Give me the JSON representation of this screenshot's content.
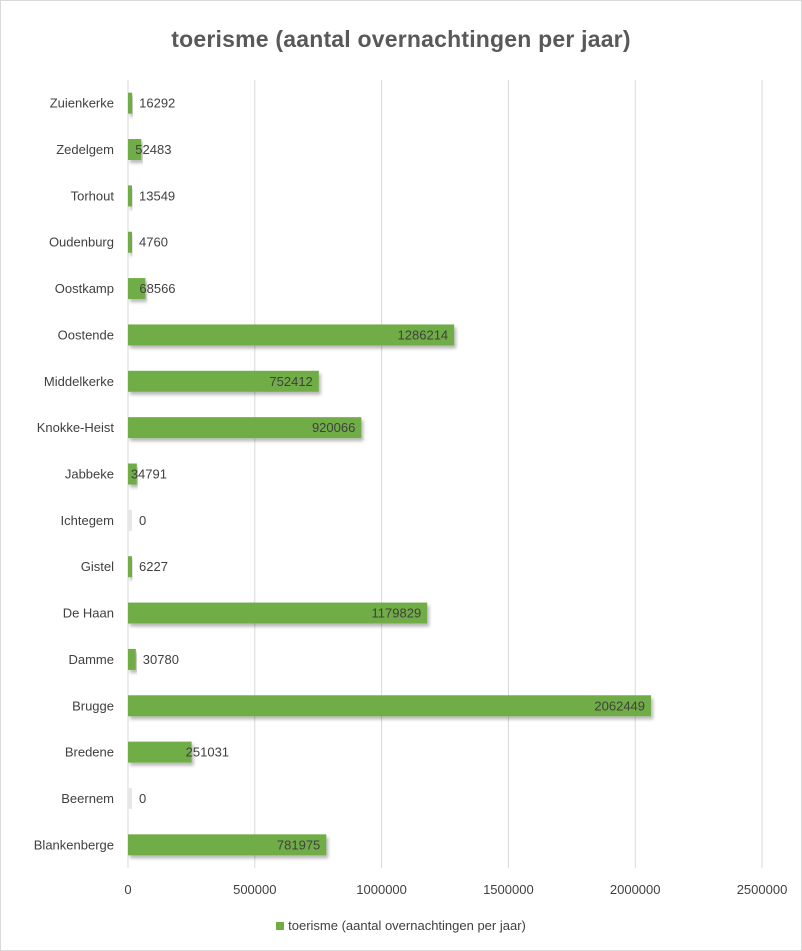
{
  "chart_data": {
    "type": "bar",
    "orientation": "horizontal",
    "title": "toerisme (aantal overnachtingen per jaar)",
    "categories": [
      "Zuienkerke",
      "Zedelgem",
      "Torhout",
      "Oudenburg",
      "Oostkamp",
      "Oostende",
      "Middelkerke",
      "Knokke-Heist",
      "Jabbeke",
      "Ichtegem",
      "Gistel",
      "De Haan",
      "Damme",
      "Brugge",
      "Bredene",
      "Beernem",
      "Blankenberge"
    ],
    "series": [
      {
        "name": "toerisme (aantal overnachtingen per jaar)",
        "color": "#70ad47",
        "values": [
          16292,
          52483,
          13549,
          4760,
          68566,
          1286214,
          752412,
          920066,
          34791,
          0,
          6227,
          1179829,
          30780,
          2062449,
          251031,
          0,
          781975
        ]
      }
    ],
    "x_ticks": [
      "0",
      "500000",
      "1000000",
      "1500000",
      "2000000",
      "2500000"
    ],
    "xlim": [
      0,
      2500000
    ],
    "gridlines": true,
    "legend_position": "bottom"
  }
}
